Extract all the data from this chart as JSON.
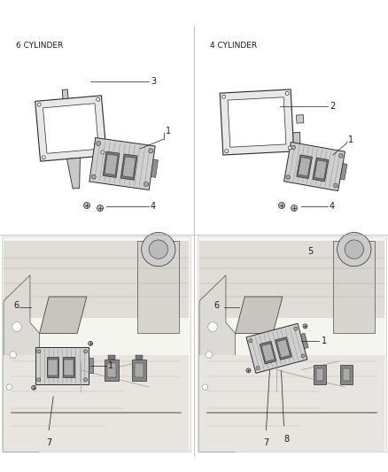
{
  "background_color": "#ffffff",
  "figsize": [
    4.38,
    5.33
  ],
  "dpi": 100,
  "label_6cyl": "6 CYLINDER",
  "label_4cyl": "4 CYLINDER",
  "font_size_label": 6.5,
  "font_size_num": 7,
  "line_color": "#1a1a1a",
  "sketch_color": "#2a2a2a",
  "fill_light": "#e8e8e8",
  "fill_medium": "#c8c8c8",
  "fill_dark": "#888888",
  "fill_darkest": "#444444"
}
